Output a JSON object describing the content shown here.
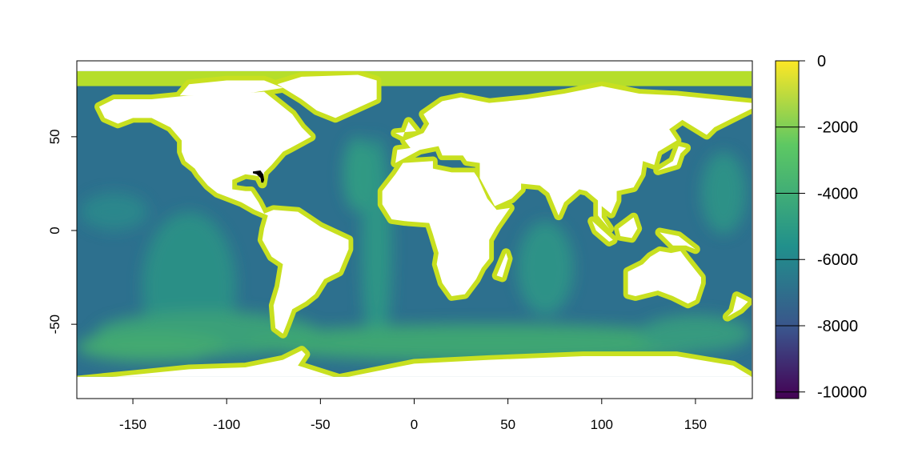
{
  "chart_data": {
    "type": "heatmap",
    "title": "",
    "xlabel": "",
    "ylabel": "",
    "xlim": [
      -180,
      180
    ],
    "ylim": [
      -90,
      90
    ],
    "x_ticks": [
      -150,
      -100,
      -50,
      0,
      50,
      100,
      150
    ],
    "y_ticks": [
      -50,
      0,
      50
    ],
    "colorbar": {
      "range": [
        -10200,
        0
      ],
      "ticks": [
        0,
        -2000,
        -4000,
        -6000,
        -8000,
        -10000
      ],
      "palette": [
        "#440154",
        "#3b528b",
        "#21908c",
        "#5dc863",
        "#fde725"
      ]
    },
    "land_color": "#ffffff",
    "highlight_color": "#000000"
  }
}
